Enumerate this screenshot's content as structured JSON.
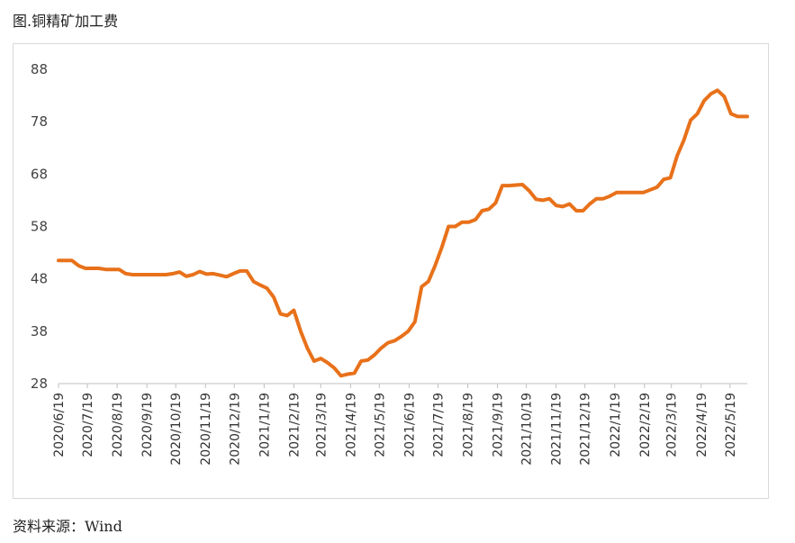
{
  "figure_title": "图.铜精矿加工费",
  "source_text": "资料来源：Wind",
  "colors": {
    "line": "#E8711A",
    "axis": "#bfbfbf",
    "frame": "#d9d9d9"
  },
  "chart_data": {
    "type": "line",
    "title": "",
    "xlabel": "",
    "ylabel": "",
    "ylim": [
      28,
      88
    ],
    "yticks": [
      28,
      38,
      48,
      58,
      68,
      78,
      88
    ],
    "grid": false,
    "x_tick_labels": [
      "2020/6/19",
      "2020/7/19",
      "2020/8/19",
      "2020/9/19",
      "2020/10/19",
      "2020/11/19",
      "2020/12/19",
      "2021/1/19",
      "2021/2/19",
      "2021/3/19",
      "2021/4/19",
      "2021/5/19",
      "2021/6/19",
      "2021/7/19",
      "2021/8/19",
      "2021/9/19",
      "2021/10/19",
      "2021/11/19",
      "2021/12/19",
      "2022/1/19",
      "2022/2/19",
      "2022/3/19",
      "2022/4/19",
      "2022/5/19"
    ],
    "x_range": [
      "2020/6/19",
      "2022/6/6"
    ],
    "series": [
      {
        "points": [
          [
            "2020/6/19",
            51.5
          ],
          [
            "2020/6/26",
            51.5
          ],
          [
            "2020/7/3",
            51.5
          ],
          [
            "2020/7/10",
            50.5
          ],
          [
            "2020/7/17",
            50.0
          ],
          [
            "2020/7/24",
            50.0
          ],
          [
            "2020/7/31",
            50.0
          ],
          [
            "2020/8/7",
            49.8
          ],
          [
            "2020/8/14",
            49.8
          ],
          [
            "2020/8/21",
            49.8
          ],
          [
            "2020/8/28",
            49.0
          ],
          [
            "2020/9/4",
            48.8
          ],
          [
            "2020/9/11",
            48.8
          ],
          [
            "2020/9/18",
            48.8
          ],
          [
            "2020/9/25",
            48.8
          ],
          [
            "2020/10/2",
            48.8
          ],
          [
            "2020/10/9",
            48.8
          ],
          [
            "2020/10/16",
            49.0
          ],
          [
            "2020/10/23",
            49.3
          ],
          [
            "2020/10/30",
            48.5
          ],
          [
            "2020/11/6",
            48.8
          ],
          [
            "2020/11/13",
            49.4
          ],
          [
            "2020/11/20",
            48.9
          ],
          [
            "2020/11/27",
            49.0
          ],
          [
            "2020/12/4",
            48.7
          ],
          [
            "2020/12/11",
            48.4
          ],
          [
            "2020/12/18",
            49.0
          ],
          [
            "2020/12/25",
            49.5
          ],
          [
            "2021/1/1",
            49.5
          ],
          [
            "2021/1/8",
            47.5
          ],
          [
            "2021/1/15",
            46.8
          ],
          [
            "2021/1/22",
            46.2
          ],
          [
            "2021/1/29",
            44.5
          ],
          [
            "2021/2/5",
            41.3
          ],
          [
            "2021/2/12",
            41.0
          ],
          [
            "2021/2/19",
            42.0
          ],
          [
            "2021/2/26",
            38.0
          ],
          [
            "2021/3/5",
            34.8
          ],
          [
            "2021/3/12",
            32.3
          ],
          [
            "2021/3/19",
            32.8
          ],
          [
            "2021/3/26",
            32.0
          ],
          [
            "2021/4/2",
            31.0
          ],
          [
            "2021/4/9",
            29.5
          ],
          [
            "2021/4/16",
            29.8
          ],
          [
            "2021/4/23",
            30.0
          ],
          [
            "2021/4/30",
            32.3
          ],
          [
            "2021/5/7",
            32.5
          ],
          [
            "2021/5/14",
            33.5
          ],
          [
            "2021/5/21",
            34.8
          ],
          [
            "2021/5/28",
            35.8
          ],
          [
            "2021/6/4",
            36.2
          ],
          [
            "2021/6/11",
            37.0
          ],
          [
            "2021/6/18",
            38.0
          ],
          [
            "2021/6/25",
            39.8
          ],
          [
            "2021/7/2",
            46.5
          ],
          [
            "2021/7/9",
            47.5
          ],
          [
            "2021/7/16",
            50.5
          ],
          [
            "2021/7/23",
            54.0
          ],
          [
            "2021/7/30",
            58.0
          ],
          [
            "2021/8/6",
            58.0
          ],
          [
            "2021/8/13",
            58.8
          ],
          [
            "2021/8/20",
            58.8
          ],
          [
            "2021/8/27",
            59.3
          ],
          [
            "2021/9/3",
            61.0
          ],
          [
            "2021/9/10",
            61.3
          ],
          [
            "2021/9/17",
            62.5
          ],
          [
            "2021/9/24",
            65.8
          ],
          [
            "2021/10/1",
            65.8
          ],
          [
            "2021/10/8",
            65.9
          ],
          [
            "2021/10/15",
            66.0
          ],
          [
            "2021/10/22",
            64.8
          ],
          [
            "2021/10/29",
            63.2
          ],
          [
            "2021/11/5",
            63.0
          ],
          [
            "2021/11/12",
            63.3
          ],
          [
            "2021/11/19",
            62.0
          ],
          [
            "2021/11/26",
            61.8
          ],
          [
            "2021/12/3",
            62.3
          ],
          [
            "2021/12/10",
            61.0
          ],
          [
            "2021/12/17",
            61.0
          ],
          [
            "2021/12/24",
            62.3
          ],
          [
            "2021/12/31",
            63.3
          ],
          [
            "2022/1/7",
            63.3
          ],
          [
            "2022/1/14",
            63.8
          ],
          [
            "2022/1/21",
            64.5
          ],
          [
            "2022/1/28",
            64.5
          ],
          [
            "2022/2/4",
            64.5
          ],
          [
            "2022/2/11",
            64.5
          ],
          [
            "2022/2/18",
            64.5
          ],
          [
            "2022/2/25",
            65.0
          ],
          [
            "2022/3/4",
            65.5
          ],
          [
            "2022/3/11",
            67.0
          ],
          [
            "2022/3/18",
            67.3
          ],
          [
            "2022/3/25",
            71.5
          ],
          [
            "2022/4/1",
            74.5
          ],
          [
            "2022/4/8",
            78.3
          ],
          [
            "2022/4/15",
            79.5
          ],
          [
            "2022/4/22",
            82.0
          ],
          [
            "2022/4/29",
            83.3
          ],
          [
            "2022/5/6",
            84.0
          ],
          [
            "2022/5/13",
            82.8
          ],
          [
            "2022/5/20",
            79.5
          ],
          [
            "2022/5/27",
            79.0
          ],
          [
            "2022/6/3",
            79.0
          ],
          [
            "2022/6/6",
            79.0
          ]
        ]
      }
    ]
  }
}
